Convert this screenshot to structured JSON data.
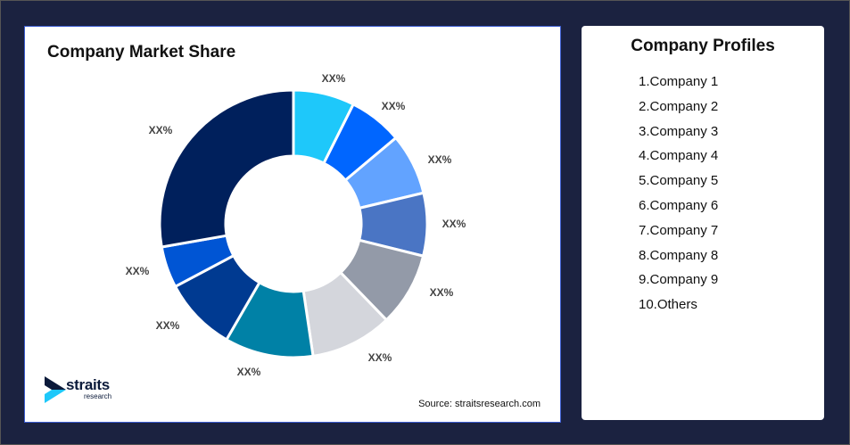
{
  "chart_data": {
    "type": "pie",
    "variant": "donut",
    "title": "Company Market Share",
    "categories": [
      "Company 1",
      "Company 2",
      "Company 3",
      "Company 4",
      "Company 5",
      "Company 6",
      "Company 7",
      "Company 8",
      "Company 9",
      "Others"
    ],
    "values": [
      7.4,
      6.5,
      7.4,
      7.6,
      8.9,
      9.9,
      10.7,
      8.9,
      5.0,
      27.8
    ],
    "labels": [
      "XX%",
      "XX%",
      "XX%",
      "XX%",
      "XX%",
      "XX%",
      "XX%",
      "XX%",
      "XX%",
      "XX%"
    ],
    "colors": [
      "#1ec8fa",
      "#0066ff",
      "#62a3ff",
      "#4a75c4",
      "#939aa8",
      "#d4d6dc",
      "#0081a6",
      "#003a91",
      "#0055d4",
      "#00205c"
    ],
    "legend": "none"
  },
  "source": "Source: straitsresearch.com",
  "logo": {
    "word1": "straits",
    "word2": "research"
  },
  "profiles": {
    "title": "Company Profiles",
    "items": [
      "1.Company 1",
      "2.Company 2",
      "3.Company 3",
      "4.Company 4",
      "5.Company 5",
      "6.Company 6",
      "7.Company 7",
      "8.Company 8",
      "9.Company 9",
      "10.Others"
    ]
  }
}
